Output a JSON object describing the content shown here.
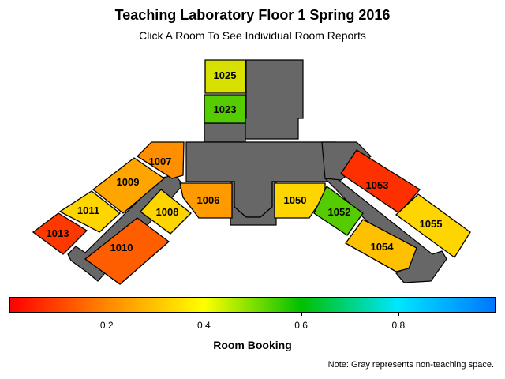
{
  "title": "Teaching Laboratory Floor 1 Spring 2016",
  "subtitle": "Click A Room To See Individual Room Reports",
  "rooms": [
    {
      "id": "1025",
      "color": "#d8e000"
    },
    {
      "id": "1023",
      "color": "#55cc00"
    },
    {
      "id": "1007",
      "color": "#ff8f00"
    },
    {
      "id": "1009",
      "color": "#ffa500"
    },
    {
      "id": "1011",
      "color": "#ffd500"
    },
    {
      "id": "1013",
      "color": "#ff3800"
    },
    {
      "id": "1008",
      "color": "#ffd500"
    },
    {
      "id": "1010",
      "color": "#ff5e00"
    },
    {
      "id": "1006",
      "color": "#ff9a00"
    },
    {
      "id": "1050",
      "color": "#ffd500"
    },
    {
      "id": "1052",
      "color": "#55cc00"
    },
    {
      "id": "1053",
      "color": "#ff3000"
    },
    {
      "id": "1054",
      "color": "#ffc000"
    },
    {
      "id": "1055",
      "color": "#ffd500"
    }
  ],
  "colorbar": {
    "label": "Room Booking",
    "ticks": [
      "0.2",
      "0.4",
      "0.6",
      "0.8"
    ],
    "tick_values": [
      0.2,
      0.4,
      0.6,
      0.8
    ],
    "min": 0,
    "max": 1,
    "stops": [
      "#ff0000",
      "#ff8800",
      "#ffff00",
      "#00c000",
      "#00e6ff",
      "#0077ff"
    ]
  },
  "note": "Note: Gray represents non-teaching space.",
  "colors": {
    "non_teaching": "#676767"
  }
}
